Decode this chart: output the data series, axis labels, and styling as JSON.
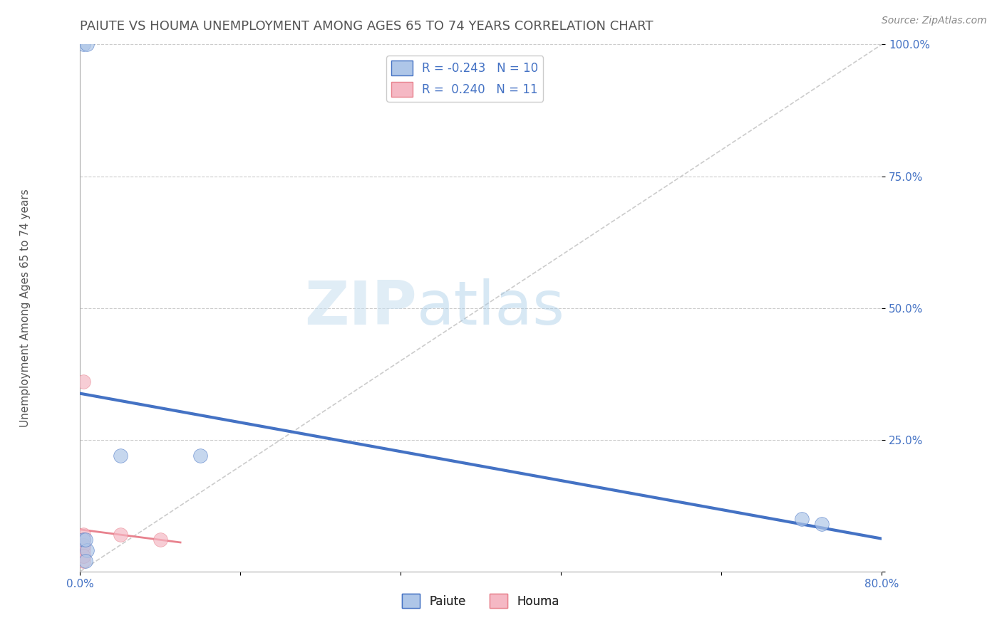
{
  "title": "PAIUTE VS HOUMA UNEMPLOYMENT AMONG AGES 65 TO 74 YEARS CORRELATION CHART",
  "source": "Source: ZipAtlas.com",
  "ylabel": "Unemployment Among Ages 65 to 74 years",
  "xlim": [
    0.0,
    0.8
  ],
  "ylim": [
    0.0,
    1.0
  ],
  "xticks": [
    0.0,
    0.16,
    0.32,
    0.48,
    0.64,
    0.8
  ],
  "xticklabels": [
    "0.0%",
    "",
    "",
    "",
    "",
    "80.0%"
  ],
  "yticks": [
    0.0,
    0.25,
    0.5,
    0.75,
    1.0
  ],
  "yticklabels": [
    "",
    "25.0%",
    "50.0%",
    "75.0%",
    "100.0%"
  ],
  "paiute_x": [
    0.003,
    0.007,
    0.003,
    0.007,
    0.04,
    0.12,
    0.005,
    0.005,
    0.72,
    0.74
  ],
  "paiute_y": [
    1.0,
    1.0,
    0.06,
    0.04,
    0.22,
    0.22,
    0.06,
    0.02,
    0.1,
    0.09
  ],
  "houma_x": [
    0.003,
    0.003,
    0.003,
    0.003,
    0.003,
    0.003,
    0.003,
    0.04,
    0.08,
    0.003,
    0.003
  ],
  "houma_y": [
    0.36,
    0.07,
    0.06,
    0.05,
    0.04,
    0.03,
    0.02,
    0.07,
    0.06,
    0.05,
    0.03
  ],
  "paiute_color": "#aec6e8",
  "houma_color": "#f5b8c4",
  "paiute_line_color": "#4472c4",
  "houma_line_color": "#e8828e",
  "R_paiute": -0.243,
  "N_paiute": 10,
  "R_houma": 0.24,
  "N_houma": 11,
  "watermark_zip": "ZIP",
  "watermark_atlas": "atlas",
  "background_color": "#ffffff",
  "grid_color": "#cccccc",
  "diagonal_color": "#cccccc",
  "title_fontsize": 13,
  "axis_label_fontsize": 11,
  "tick_fontsize": 11,
  "legend_fontsize": 12,
  "marker_size": 200,
  "marker_alpha": 0.7
}
